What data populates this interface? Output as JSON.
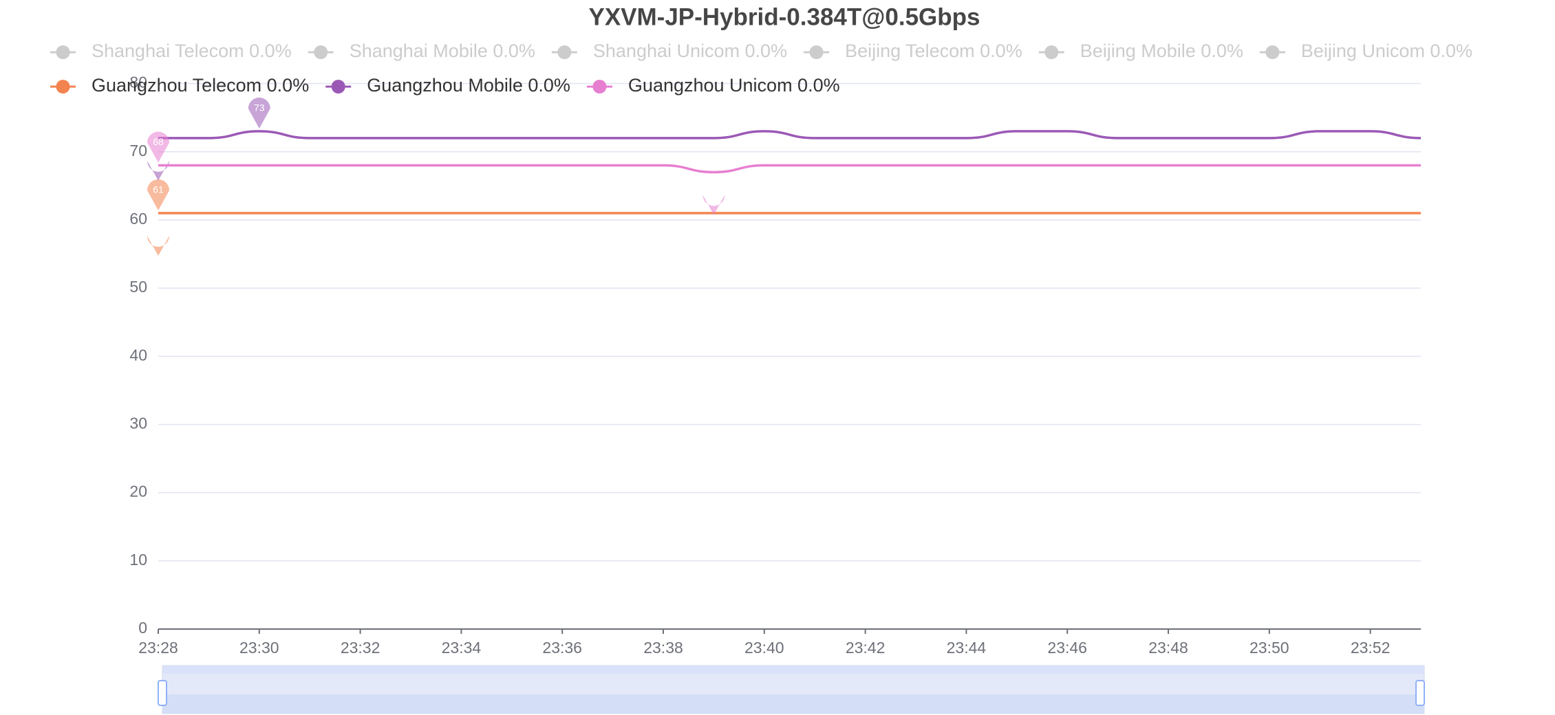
{
  "chart_data": {
    "type": "line",
    "title": "YXVM-JP-Hybrid-0.384T@0.5Gbps",
    "hidden_series": [
      "Shanghai Telecom 0.0%",
      "Shanghai Mobile 0.0%",
      "Shanghai Unicom 0.0%",
      "Beijing Telecom 0.0%",
      "Beijing Mobile 0.0%",
      "Beijing Unicom 0.0%"
    ],
    "categories": [
      "23:28",
      null,
      "23:30",
      null,
      "23:32",
      null,
      "23:34",
      null,
      "23:36",
      null,
      "23:38",
      null,
      "23:40",
      null,
      "23:42",
      null,
      "23:44",
      null,
      "23:46",
      null,
      "23:48",
      null,
      "23:50",
      null,
      "23:52",
      null
    ],
    "series": [
      {
        "name": "Guangzhou Telecom 0.0%",
        "color": "#f4844f",
        "values": [
          61,
          61,
          61,
          61,
          61,
          61,
          61,
          61,
          61,
          61,
          61,
          61,
          61,
          61,
          61,
          61,
          61,
          61,
          61,
          61,
          61,
          61,
          61,
          61,
          61,
          61
        ]
      },
      {
        "name": "Guangzhou Mobile 0.0%",
        "color": "#9b59b6",
        "values": [
          72,
          72,
          73,
          72,
          72,
          72,
          72,
          72,
          72,
          72,
          72,
          72,
          73,
          72,
          72,
          72,
          72,
          73,
          73,
          72,
          72,
          72,
          72,
          73,
          73,
          72
        ]
      },
      {
        "name": "Guangzhou Unicom 0.0%",
        "color": "#e77fd1",
        "values": [
          68,
          68,
          68,
          68,
          68,
          68,
          68,
          68,
          68,
          68,
          68,
          67,
          68,
          68,
          68,
          68,
          68,
          68,
          68,
          68,
          68,
          68,
          68,
          68,
          68,
          68
        ]
      }
    ],
    "ylim": [
      0,
      80
    ],
    "yticks": [
      0,
      10,
      20,
      30,
      40,
      50,
      60,
      70,
      80
    ],
    "grid": true
  }
}
